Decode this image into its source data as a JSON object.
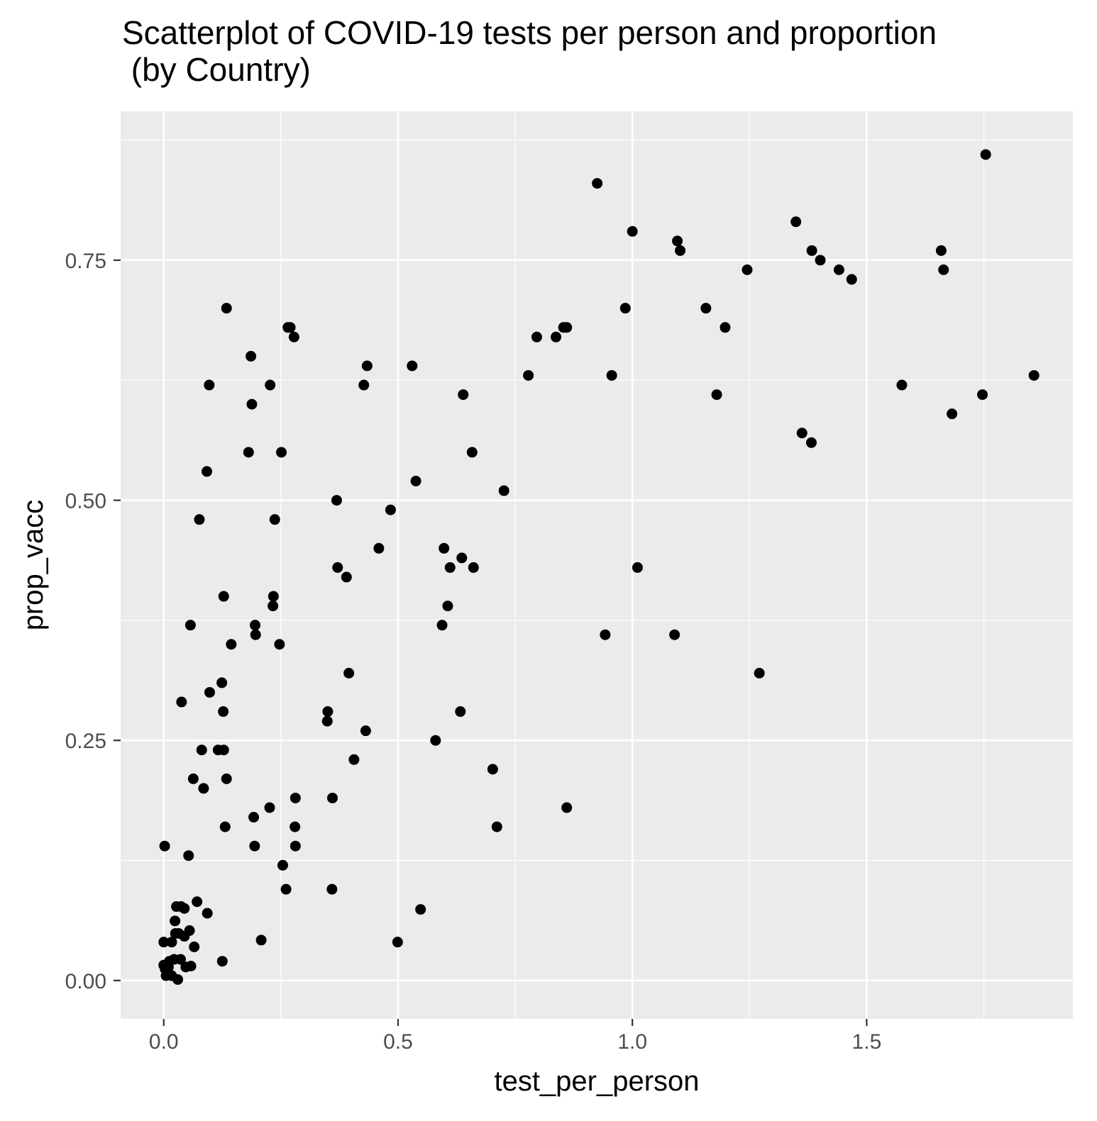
{
  "chart_data": {
    "type": "scatter",
    "title": "Scatterplot of COVID-19 tests per person and proportion\n (by Country)",
    "xlabel": "test_per_person",
    "ylabel": "prop_vacc",
    "xlim": [
      -0.092,
      1.94
    ],
    "ylim": [
      -0.04,
      0.905
    ],
    "x_ticks": [
      0.0,
      0.5,
      1.0,
      1.5
    ],
    "x_tick_labels": [
      "0.0",
      "0.5",
      "1.0",
      "1.5"
    ],
    "y_ticks": [
      0.0,
      0.25,
      0.5,
      0.75
    ],
    "y_tick_labels": [
      "0.00",
      "0.25",
      "0.50",
      "0.75"
    ],
    "grid": true,
    "point_color": "#000000",
    "panel_color": "#ebebeb",
    "grid_color": "#ffffff",
    "points": [
      [
        1.754,
        0.86
      ],
      [
        0.925,
        0.83
      ],
      [
        1.349,
        0.79
      ],
      [
        1.0,
        0.78
      ],
      [
        1.096,
        0.77
      ],
      [
        1.102,
        0.76
      ],
      [
        1.383,
        0.76
      ],
      [
        1.659,
        0.76
      ],
      [
        1.401,
        0.75
      ],
      [
        1.245,
        0.74
      ],
      [
        1.441,
        0.74
      ],
      [
        1.664,
        0.74
      ],
      [
        1.468,
        0.73
      ],
      [
        0.134,
        0.7
      ],
      [
        0.985,
        0.7
      ],
      [
        1.157,
        0.7
      ],
      [
        0.265,
        0.68
      ],
      [
        0.27,
        0.68
      ],
      [
        0.853,
        0.68
      ],
      [
        0.86,
        0.68
      ],
      [
        1.198,
        0.68
      ],
      [
        0.278,
        0.67
      ],
      [
        0.796,
        0.67
      ],
      [
        0.837,
        0.67
      ],
      [
        0.186,
        0.65
      ],
      [
        0.434,
        0.64
      ],
      [
        0.53,
        0.64
      ],
      [
        0.778,
        0.63
      ],
      [
        0.956,
        0.63
      ],
      [
        1.857,
        0.63
      ],
      [
        0.097,
        0.62
      ],
      [
        0.227,
        0.62
      ],
      [
        0.427,
        0.62
      ],
      [
        1.575,
        0.62
      ],
      [
        0.639,
        0.61
      ],
      [
        1.18,
        0.61
      ],
      [
        1.747,
        0.61
      ],
      [
        0.188,
        0.6
      ],
      [
        1.682,
        0.59
      ],
      [
        1.362,
        0.57
      ],
      [
        1.382,
        0.56
      ],
      [
        0.181,
        0.55
      ],
      [
        0.251,
        0.55
      ],
      [
        0.658,
        0.55
      ],
      [
        0.092,
        0.53
      ],
      [
        0.538,
        0.52
      ],
      [
        0.726,
        0.51
      ],
      [
        0.369,
        0.5
      ],
      [
        0.484,
        0.49
      ],
      [
        0.076,
        0.48
      ],
      [
        0.237,
        0.48
      ],
      [
        0.459,
        0.45
      ],
      [
        0.598,
        0.45
      ],
      [
        0.636,
        0.44
      ],
      [
        0.371,
        0.43
      ],
      [
        0.611,
        0.43
      ],
      [
        0.661,
        0.43
      ],
      [
        1.011,
        0.43
      ],
      [
        0.39,
        0.42
      ],
      [
        0.128,
        0.4
      ],
      [
        0.234,
        0.4
      ],
      [
        0.233,
        0.39
      ],
      [
        0.606,
        0.39
      ],
      [
        0.057,
        0.37
      ],
      [
        0.195,
        0.37
      ],
      [
        0.594,
        0.37
      ],
      [
        0.196,
        0.36
      ],
      [
        0.942,
        0.36
      ],
      [
        1.09,
        0.36
      ],
      [
        0.144,
        0.35
      ],
      [
        0.247,
        0.35
      ],
      [
        0.395,
        0.32
      ],
      [
        1.271,
        0.32
      ],
      [
        0.124,
        0.31
      ],
      [
        0.098,
        0.3
      ],
      [
        0.038,
        0.29
      ],
      [
        0.127,
        0.28
      ],
      [
        0.35,
        0.28
      ],
      [
        0.633,
        0.28
      ],
      [
        0.349,
        0.27
      ],
      [
        0.431,
        0.26
      ],
      [
        0.58,
        0.25
      ],
      [
        0.081,
        0.24
      ],
      [
        0.116,
        0.24
      ],
      [
        0.128,
        0.24
      ],
      [
        0.063,
        0.21
      ],
      [
        0.134,
        0.21
      ],
      [
        0.406,
        0.23
      ],
      [
        0.702,
        0.22
      ],
      [
        0.085,
        0.2
      ],
      [
        0.192,
        0.17
      ],
      [
        0.226,
        0.18
      ],
      [
        0.281,
        0.19
      ],
      [
        0.36,
        0.19
      ],
      [
        0.86,
        0.18
      ],
      [
        0.131,
        0.16
      ],
      [
        0.28,
        0.16
      ],
      [
        0.711,
        0.16
      ],
      [
        0.002,
        0.14
      ],
      [
        0.194,
        0.14
      ],
      [
        0.281,
        0.14
      ],
      [
        0.053,
        0.13
      ],
      [
        0.254,
        0.12
      ],
      [
        0.261,
        0.095
      ],
      [
        0.359,
        0.095
      ],
      [
        0.071,
        0.082
      ],
      [
        0.027,
        0.077
      ],
      [
        0.037,
        0.077
      ],
      [
        0.044,
        0.075
      ],
      [
        0.548,
        0.074
      ],
      [
        0.093,
        0.07
      ],
      [
        0.024,
        0.062
      ],
      [
        0.055,
        0.052
      ],
      [
        0.025,
        0.049
      ],
      [
        0.032,
        0.049
      ],
      [
        0.044,
        0.046
      ],
      [
        0.0,
        0.04
      ],
      [
        0.017,
        0.04
      ],
      [
        0.208,
        0.042
      ],
      [
        0.499,
        0.04
      ],
      [
        0.065,
        0.035
      ],
      [
        0.125,
        0.02
      ],
      [
        0.0,
        0.016
      ],
      [
        0.012,
        0.02
      ],
      [
        0.022,
        0.022
      ],
      [
        0.036,
        0.022
      ],
      [
        0.003,
        0.012
      ],
      [
        0.01,
        0.014
      ],
      [
        0.047,
        0.014
      ],
      [
        0.058,
        0.015
      ],
      [
        0.005,
        0.005
      ],
      [
        0.017,
        0.005
      ],
      [
        0.03,
        0.001
      ]
    ]
  }
}
